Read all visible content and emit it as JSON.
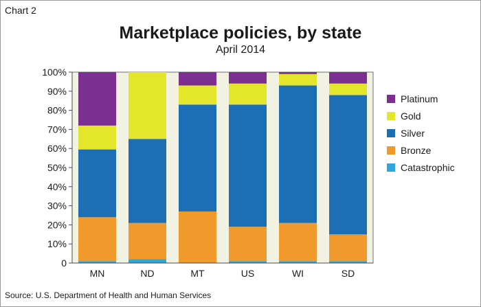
{
  "header": {
    "chart_label": "Chart 2",
    "title": "Marketplace policies, by state",
    "subtitle": "April 2014"
  },
  "footer": {
    "source": "Source: U.S. Department of Health and Human Services"
  },
  "colors": {
    "background": "#f2f2e2",
    "frame": "#9a9a9a",
    "Platinum": "#7b2f91",
    "Gold": "#e3e62b",
    "Silver": "#1d6fb5",
    "Bronze": "#ef9a2a",
    "Catastrophic": "#2ea6db"
  },
  "chart_data": {
    "type": "bar",
    "stacked": true,
    "categories": [
      "MN",
      "ND",
      "MT",
      "US",
      "WI",
      "SD"
    ],
    "series": [
      {
        "name": "Catastrophic",
        "values": [
          1,
          2,
          0,
          1,
          1,
          1
        ]
      },
      {
        "name": "Bronze",
        "values": [
          23,
          19,
          27,
          18,
          20,
          14
        ]
      },
      {
        "name": "Silver",
        "values": [
          35.5,
          44,
          56,
          64,
          72,
          73
        ]
      },
      {
        "name": "Gold",
        "values": [
          12.5,
          35,
          10,
          11,
          6,
          6
        ]
      },
      {
        "name": "Platinum",
        "values": [
          28,
          0,
          7,
          6,
          1,
          6
        ]
      }
    ],
    "legend_order": [
      "Platinum",
      "Gold",
      "Silver",
      "Bronze",
      "Catastrophic"
    ],
    "legend_position": "right",
    "y_ticks": [
      "0",
      "10%",
      "20%",
      "30%",
      "40%",
      "50%",
      "60%",
      "70%",
      "80%",
      "90%",
      "100%"
    ],
    "ylim": [
      0,
      100
    ],
    "xlabel": "",
    "ylabel": "",
    "grid": false
  }
}
